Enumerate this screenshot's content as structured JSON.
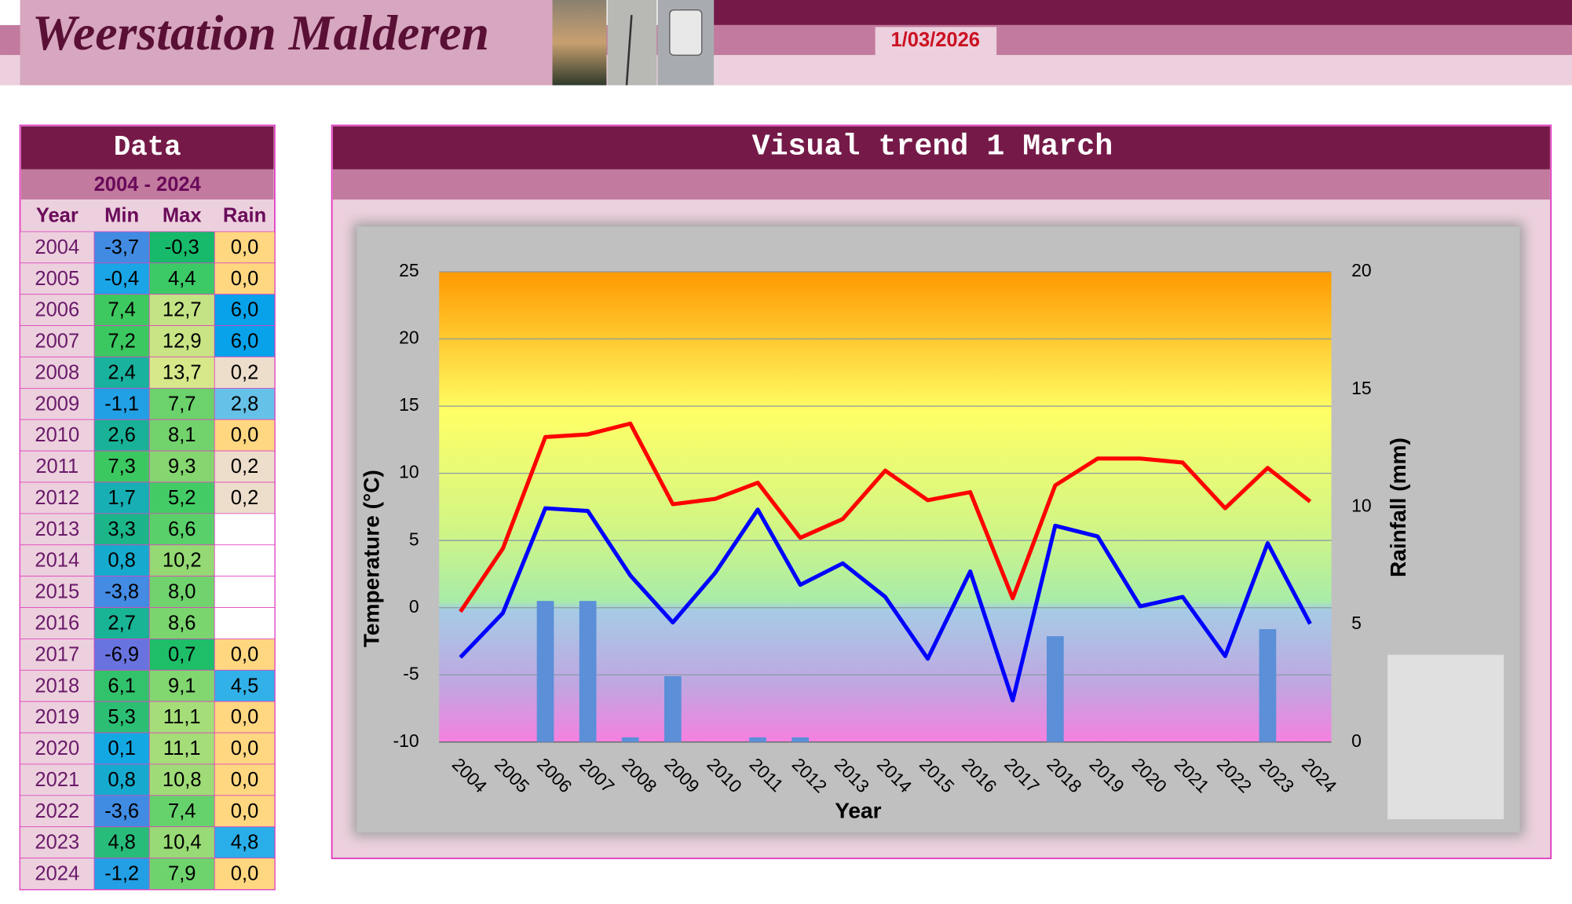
{
  "header": {
    "title": "Weerstation Malderen",
    "date": "1/03/2026"
  },
  "table": {
    "title": "Data",
    "period": "2004 - 2024",
    "columns": [
      "Year",
      "Min",
      "Max",
      "Rain"
    ],
    "rows": [
      [
        "2004",
        "-3,7",
        "-0,3",
        "0,0"
      ],
      [
        "2005",
        "-0,4",
        "4,4",
        "0,0"
      ],
      [
        "2006",
        "7,4",
        "12,7",
        "6,0"
      ],
      [
        "2007",
        "7,2",
        "12,9",
        "6,0"
      ],
      [
        "2008",
        "2,4",
        "13,7",
        "0,2"
      ],
      [
        "2009",
        "-1,1",
        "7,7",
        "2,8"
      ],
      [
        "2010",
        "2,6",
        "8,1",
        "0,0"
      ],
      [
        "2011",
        "7,3",
        "9,3",
        "0,2"
      ],
      [
        "2012",
        "1,7",
        "5,2",
        "0,2"
      ],
      [
        "2013",
        "3,3",
        "6,6",
        null
      ],
      [
        "2014",
        "0,8",
        "10,2",
        null
      ],
      [
        "2015",
        "-3,8",
        "8,0",
        null
      ],
      [
        "2016",
        "2,7",
        "8,6",
        null
      ],
      [
        "2017",
        "-6,9",
        "0,7",
        "0,0"
      ],
      [
        "2018",
        "6,1",
        "9,1",
        "4,5"
      ],
      [
        "2019",
        "5,3",
        "11,1",
        "0,0"
      ],
      [
        "2020",
        "0,1",
        "11,1",
        "0,0"
      ],
      [
        "2021",
        "0,8",
        "10,8",
        "0,0"
      ],
      [
        "2022",
        "-3,6",
        "7,4",
        "0,0"
      ],
      [
        "2023",
        "4,8",
        "10,4",
        "4,8"
      ],
      [
        "2024",
        "-1,2",
        "7,9",
        "0,0"
      ]
    ]
  },
  "chart_data": {
    "type": "line",
    "title": "Visual trend 1 March",
    "xlabel": "Year",
    "ylabel": "Temperature (°C)",
    "y2label": "Rainfall (mm)",
    "categories": [
      "2004",
      "2005",
      "2006",
      "2007",
      "2008",
      "2009",
      "2010",
      "2011",
      "2012",
      "2013",
      "2014",
      "2015",
      "2016",
      "2017",
      "2018",
      "2019",
      "2020",
      "2021",
      "2022",
      "2023",
      "2024"
    ],
    "series": [
      {
        "name": "Max",
        "color": "#ff0000",
        "type": "line",
        "values": [
          -0.3,
          4.4,
          12.7,
          12.9,
          13.7,
          7.7,
          8.1,
          9.3,
          5.2,
          6.6,
          10.2,
          8.0,
          8.6,
          0.7,
          9.1,
          11.1,
          11.1,
          10.8,
          7.4,
          10.4,
          7.9
        ]
      },
      {
        "name": "Min",
        "color": "#0000ff",
        "type": "line",
        "values": [
          -3.7,
          -0.4,
          7.4,
          7.2,
          2.4,
          -1.1,
          2.6,
          7.3,
          1.7,
          3.3,
          0.8,
          -3.8,
          2.7,
          -6.9,
          6.1,
          5.3,
          0.1,
          0.8,
          -3.6,
          4.8,
          -1.2
        ]
      },
      {
        "name": "Rain",
        "color": "#5b8fd8",
        "type": "bar",
        "axis": "y2",
        "values": [
          0.0,
          0.0,
          6.0,
          6.0,
          0.2,
          2.8,
          0.0,
          0.2,
          0.2,
          null,
          null,
          null,
          null,
          0.0,
          4.5,
          0.0,
          0.0,
          0.0,
          0.0,
          4.8,
          0.0
        ]
      }
    ],
    "ylim": [
      -10,
      25
    ],
    "yticks": [
      -10,
      -5,
      0,
      5,
      10,
      15,
      20,
      25
    ],
    "y2lim": [
      0,
      20
    ],
    "y2ticks": [
      0,
      5,
      10,
      15,
      20
    ],
    "grid": true,
    "legend": "right"
  }
}
